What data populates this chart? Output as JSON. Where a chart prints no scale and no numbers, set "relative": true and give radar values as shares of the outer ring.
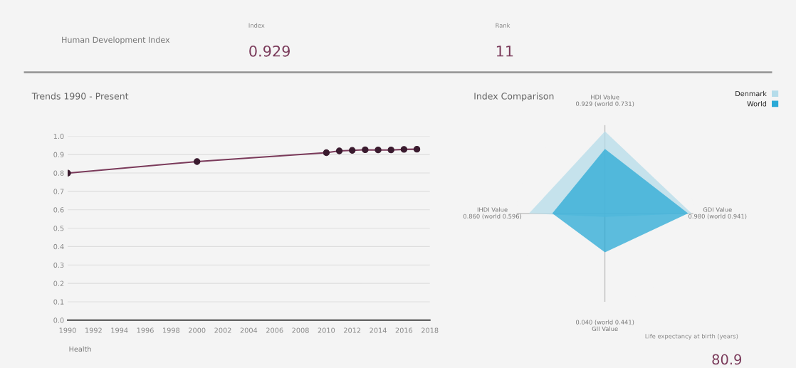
{
  "chart_data": [
    {
      "type": "other",
      "annotations": [
        "Human Development Index",
        "Index",
        "0.929",
        "Rank",
        "11"
      ]
    },
    {
      "type": "line",
      "title": "Trends 1990 - Present",
      "x": [
        1990,
        2000,
        2010,
        2011,
        2012,
        2013,
        2014,
        2015,
        2016,
        2017
      ],
      "series": [
        {
          "color": "#7a3a5a",
          "values": [
            0.799,
            0.862,
            0.91,
            0.92,
            0.923,
            0.926,
            0.925,
            0.925,
            0.928,
            0.929
          ]
        }
      ],
      "xlim": [
        1990,
        2018
      ],
      "xticks": [
        1990,
        1992,
        1994,
        1996,
        1998,
        2000,
        2002,
        2004,
        2006,
        2008,
        2010,
        2012,
        2014,
        2016,
        2018
      ],
      "ylim": [
        0,
        1
      ],
      "yticks": [
        {
          "value": 0,
          "label": "0.0"
        },
        0.1,
        0.2,
        0.3,
        0.4,
        0.5,
        0.6,
        0.7,
        0.8,
        0.9,
        {
          "value": 1,
          "label": "1.0"
        }
      ],
      "grid": "y",
      "marker": "circle",
      "line_style": "solid",
      "legend": false
    },
    {
      "type": "radar",
      "title": "Index Comparison",
      "relative": true,
      "categories": [
        "HDI Value\n0.929 (world 0.731)",
        "GDI Value\n0.980 (world 0.941)",
        "0.040 (world 0.441)\nGII Value",
        "IHDI Value\n0.860 (world 0.596)"
      ],
      "series": [
        {
          "name": "Denmark",
          "color": "#b5dcea",
          "values": [
            0.929,
            0.98,
            0.04,
            0.86
          ]
        },
        {
          "name": "World",
          "color": "#2aa9d6",
          "values": [
            0.731,
            0.941,
            0.441,
            0.596
          ]
        }
      ],
      "legend": "top right"
    },
    {
      "type": "other",
      "annotations": [
        "Health",
        "Life expectancy at birth (years)",
        "80.9"
      ]
    }
  ]
}
